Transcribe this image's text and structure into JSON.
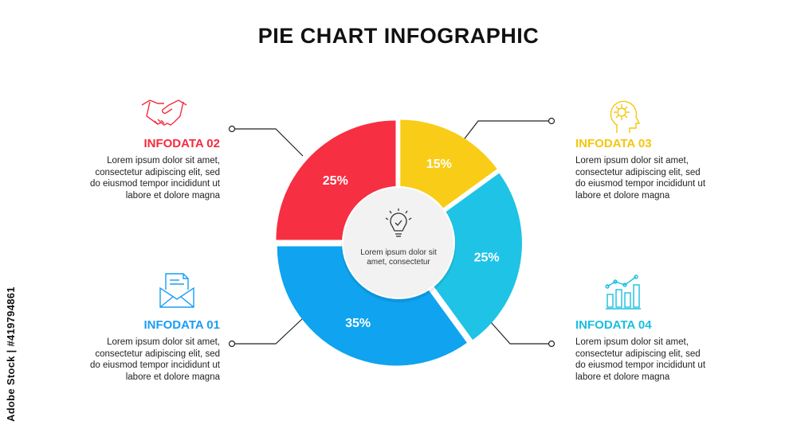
{
  "title": "PIE CHART INFOGRAPHIC",
  "center": {
    "text": "Lorem ipsum dolor sit amet, consectetur",
    "icon": "lightbulb-check-icon"
  },
  "watermark": "Adobe Stock | #419794861",
  "blocks": [
    {
      "label": "INFODATA 01",
      "color": "#1a9df2",
      "icon": "envelope-document-icon",
      "text": "Lorem ipsum dolor sit amet, consectetur adipiscing elit, sed do eiusmod tempor incididunt ut labore et dolore magna"
    },
    {
      "label": "INFODATA 02",
      "color": "#f52b3f",
      "icon": "handshake-icon",
      "text": "Lorem ipsum dolor sit amet, consectetur adipiscing elit, sed do eiusmod tempor incididunt ut labore et dolore magna"
    },
    {
      "label": "INFODATA 03",
      "color": "#f5c60e",
      "icon": "head-gear-icon",
      "text": "Lorem ipsum dolor sit amet, consectetur adipiscing elit, sed do eiusmod tempor incididunt ut labore et dolore magna"
    },
    {
      "label": "INFODATA 04",
      "color": "#19bfe0",
      "icon": "bar-chart-trend-icon",
      "text": "Lorem ipsum dolor sit amet, consectetur adipiscing elit, sed do eiusmod tempor incididunt ut labore et dolore magna"
    }
  ],
  "chart_data": {
    "type": "pie",
    "categories": [
      "INFODATA 03",
      "INFODATA 04",
      "INFODATA 01",
      "INFODATA 02"
    ],
    "values": [
      15,
      25,
      35,
      25
    ],
    "labels": [
      "15%",
      "25%",
      "35%",
      "25%"
    ],
    "colors": [
      "#f9cd17",
      "#1ec3e6",
      "#0fa3f0",
      "#f72f42"
    ]
  }
}
